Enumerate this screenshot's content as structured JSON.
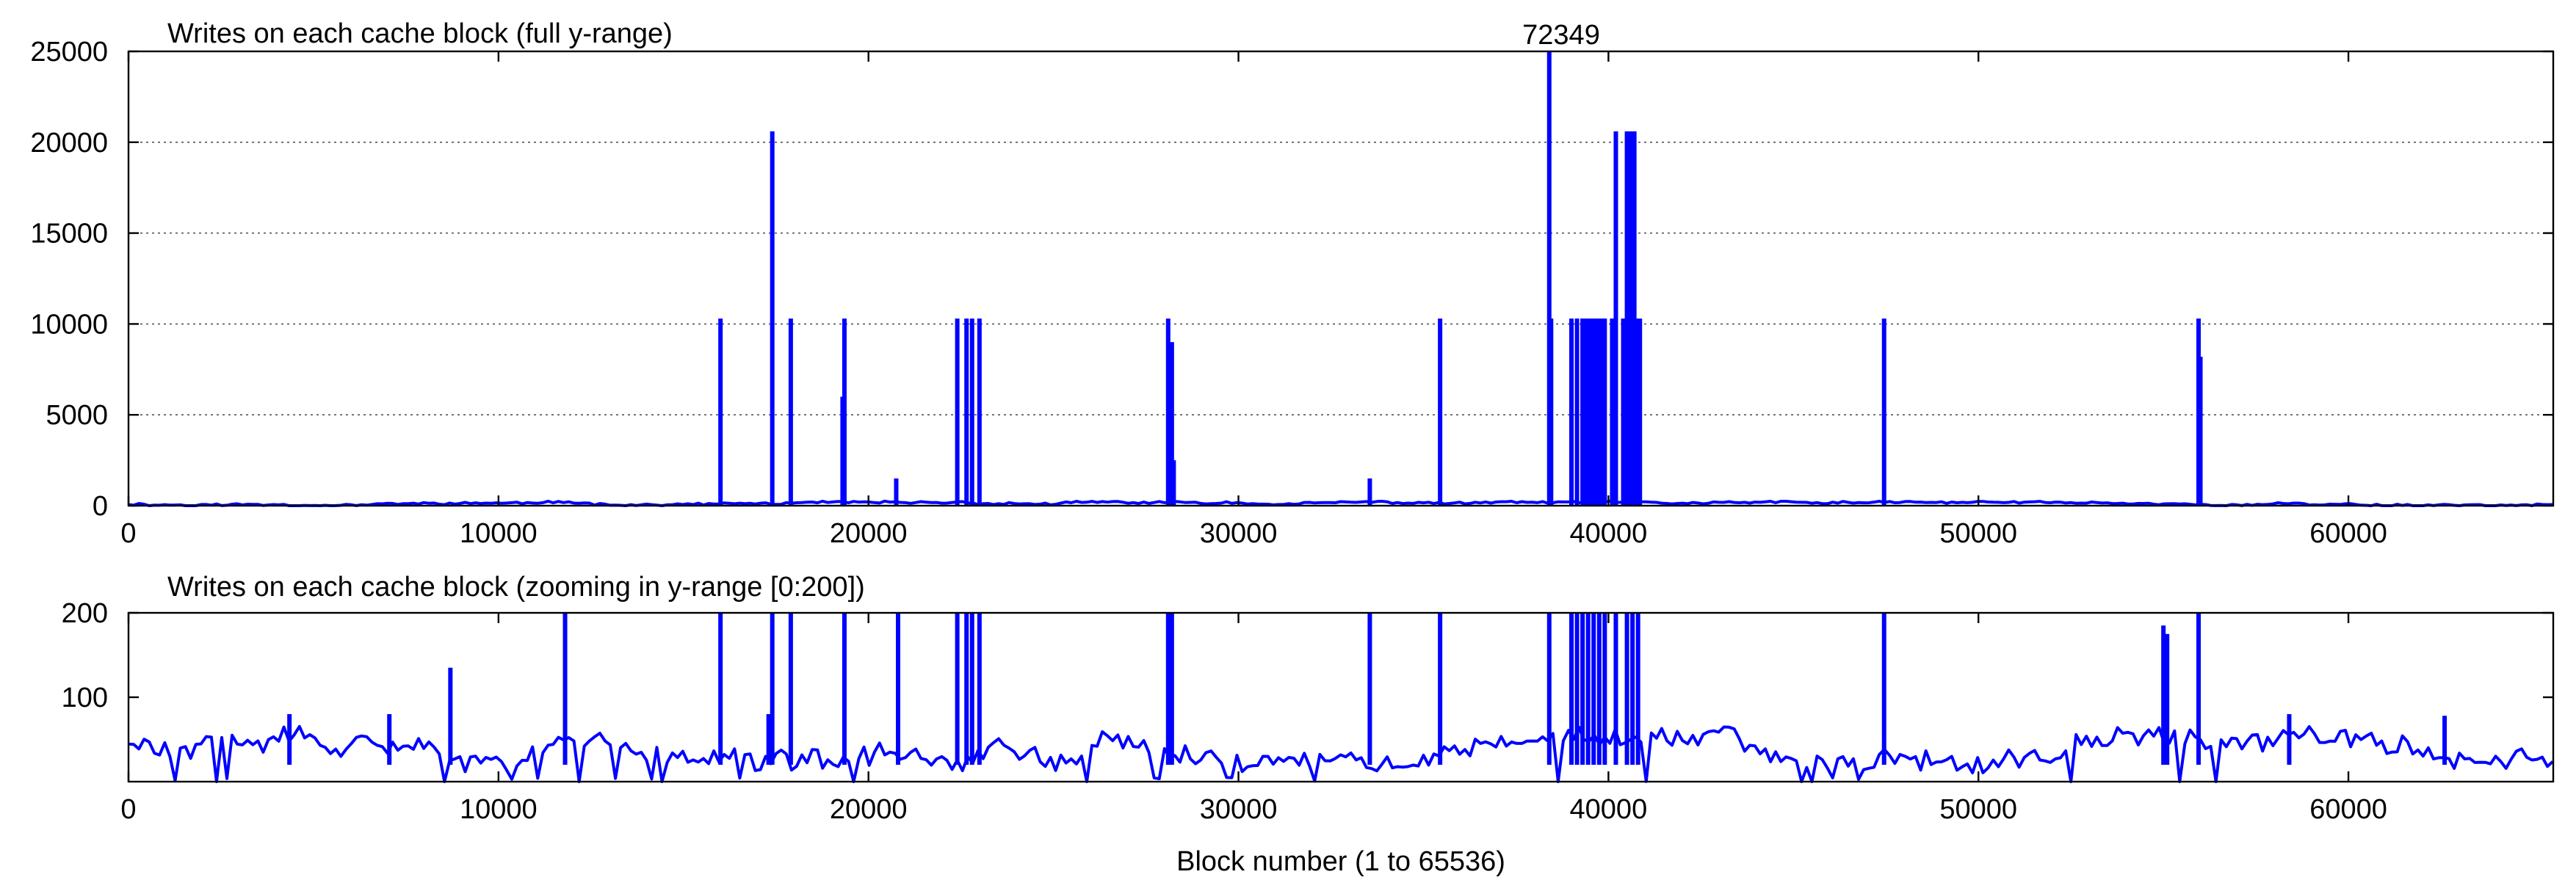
{
  "chart_data": [
    {
      "type": "line",
      "title": "Writes on each cache block (full y-range)",
      "annotation": "72349",
      "xlabel": "",
      "ylabel": "",
      "xlim": [
        0,
        65536
      ],
      "ylim": [
        0,
        25000
      ],
      "x_ticks": [
        0,
        10000,
        20000,
        30000,
        40000,
        50000,
        60000
      ],
      "y_ticks": [
        0,
        5000,
        10000,
        15000,
        20000,
        25000
      ],
      "grid": "horizontal dotted",
      "baseline_range": [
        0,
        200
      ],
      "color": "#0000ff",
      "spikes": [
        {
          "x": 16000,
          "y": 10300
        },
        {
          "x": 17400,
          "y": 20600
        },
        {
          "x": 17900,
          "y": 10300
        },
        {
          "x": 19350,
          "y": 10300
        },
        {
          "x": 19300,
          "y": 6000
        },
        {
          "x": 20750,
          "y": 1500
        },
        {
          "x": 22400,
          "y": 10300
        },
        {
          "x": 22650,
          "y": 10300
        },
        {
          "x": 22800,
          "y": 10300
        },
        {
          "x": 23000,
          "y": 10300
        },
        {
          "x": 28100,
          "y": 10300
        },
        {
          "x": 28200,
          "y": 9000
        },
        {
          "x": 28250,
          "y": 2500
        },
        {
          "x": 33550,
          "y": 1500
        },
        {
          "x": 35450,
          "y": 10300
        },
        {
          "x": 38400,
          "y": 25000
        },
        {
          "x": 38450,
          "y": 10300
        },
        {
          "x": 39000,
          "y": 10300
        },
        {
          "x": 39150,
          "y": 10300
        },
        {
          "x": 39300,
          "y": 10300
        },
        {
          "x": 39400,
          "y": 10300
        },
        {
          "x": 39500,
          "y": 10300
        },
        {
          "x": 39600,
          "y": 10300
        },
        {
          "x": 39700,
          "y": 10300
        },
        {
          "x": 39800,
          "y": 10300
        },
        {
          "x": 39900,
          "y": 10300
        },
        {
          "x": 40200,
          "y": 20600
        },
        {
          "x": 40100,
          "y": 10300
        },
        {
          "x": 40400,
          "y": 10300
        },
        {
          "x": 40500,
          "y": 20600
        },
        {
          "x": 40600,
          "y": 20600
        },
        {
          "x": 40700,
          "y": 20600
        },
        {
          "x": 40750,
          "y": 10300
        },
        {
          "x": 40850,
          "y": 10300
        },
        {
          "x": 47450,
          "y": 10300
        },
        {
          "x": 55950,
          "y": 10300
        },
        {
          "x": 56000,
          "y": 8200
        }
      ]
    },
    {
      "type": "line",
      "title": "Writes on each cache block (zooming in y-range [0:200])",
      "xlabel": "Block number (1 to 65536)",
      "ylabel": "",
      "xlim": [
        0,
        65536
      ],
      "ylim": [
        0,
        200
      ],
      "x_ticks": [
        0,
        10000,
        20000,
        30000,
        40000,
        50000,
        60000
      ],
      "y_ticks": [
        100,
        200
      ],
      "grid": "none",
      "baseline_range": [
        20,
        60
      ],
      "color": "#0000ff",
      "spikes": [
        {
          "x": 4350,
          "y": 80
        },
        {
          "x": 7050,
          "y": 80
        },
        {
          "x": 8700,
          "y": 135
        },
        {
          "x": 11800,
          "y": 200
        },
        {
          "x": 16000,
          "y": 200
        },
        {
          "x": 17300,
          "y": 80
        },
        {
          "x": 17400,
          "y": 200
        },
        {
          "x": 17900,
          "y": 200
        },
        {
          "x": 19350,
          "y": 200
        },
        {
          "x": 20800,
          "y": 200
        },
        {
          "x": 22400,
          "y": 200
        },
        {
          "x": 22650,
          "y": 200
        },
        {
          "x": 22800,
          "y": 200
        },
        {
          "x": 23000,
          "y": 200
        },
        {
          "x": 28100,
          "y": 200
        },
        {
          "x": 28200,
          "y": 200
        },
        {
          "x": 33550,
          "y": 200
        },
        {
          "x": 35450,
          "y": 200
        },
        {
          "x": 38400,
          "y": 200
        },
        {
          "x": 39000,
          "y": 200
        },
        {
          "x": 39150,
          "y": 200
        },
        {
          "x": 39300,
          "y": 200
        },
        {
          "x": 39450,
          "y": 200
        },
        {
          "x": 39600,
          "y": 200
        },
        {
          "x": 39750,
          "y": 200
        },
        {
          "x": 39900,
          "y": 200
        },
        {
          "x": 40200,
          "y": 200
        },
        {
          "x": 40500,
          "y": 200
        },
        {
          "x": 40650,
          "y": 200
        },
        {
          "x": 40800,
          "y": 200
        },
        {
          "x": 47450,
          "y": 200
        },
        {
          "x": 55000,
          "y": 185
        },
        {
          "x": 55100,
          "y": 175
        },
        {
          "x": 55950,
          "y": 200
        },
        {
          "x": 58400,
          "y": 80
        },
        {
          "x": 62600,
          "y": 78
        }
      ]
    }
  ]
}
